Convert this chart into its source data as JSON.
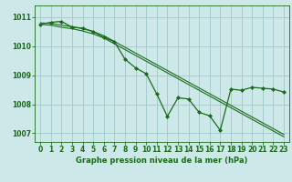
{
  "title": "Graphe pression niveau de la mer (hPa)",
  "bg_color": "#cce8e8",
  "grid_color": "#a0c8c8",
  "line_color": "#1a6b1a",
  "marker_color": "#1a6b1a",
  "xlim": [
    -0.5,
    23.5
  ],
  "ylim": [
    1006.7,
    1011.4
  ],
  "yticks": [
    1007,
    1008,
    1009,
    1010,
    1011
  ],
  "xticks": [
    0,
    1,
    2,
    3,
    4,
    5,
    6,
    7,
    8,
    9,
    10,
    11,
    12,
    13,
    14,
    15,
    16,
    17,
    18,
    19,
    20,
    21,
    22,
    23
  ],
  "series1_x": [
    0,
    1,
    2,
    3,
    4,
    5,
    6,
    7,
    8,
    9,
    10,
    11,
    12,
    13,
    14,
    15,
    16,
    17,
    18,
    19,
    20,
    21,
    22,
    23
  ],
  "series1_y": [
    1010.75,
    1010.82,
    1010.85,
    1010.65,
    1010.62,
    1010.5,
    1010.3,
    1010.15,
    1009.55,
    1009.25,
    1009.05,
    1008.35,
    1007.58,
    1008.22,
    1008.18,
    1007.72,
    1007.6,
    1007.1,
    1008.52,
    1008.48,
    1008.58,
    1008.55,
    1008.52,
    1008.42
  ],
  "series2_x": [
    0,
    1,
    2,
    3,
    4,
    5,
    6,
    7,
    8,
    9,
    10,
    11,
    12,
    13,
    14,
    15,
    16,
    17,
    18,
    19,
    20,
    21,
    22,
    23
  ],
  "series2_y": [
    1010.75,
    1010.72,
    1010.65,
    1010.6,
    1010.52,
    1010.42,
    1010.28,
    1010.08,
    1009.88,
    1009.68,
    1009.48,
    1009.28,
    1009.08,
    1008.88,
    1008.68,
    1008.48,
    1008.28,
    1008.08,
    1007.88,
    1007.68,
    1007.48,
    1007.28,
    1007.08,
    1006.88
  ],
  "series3_x": [
    0,
    1,
    2,
    3,
    4,
    5,
    6,
    7,
    8,
    9,
    10,
    11,
    12,
    13,
    14,
    15,
    16,
    17,
    18,
    19,
    20,
    21,
    22,
    23
  ],
  "series3_y": [
    1010.8,
    1010.78,
    1010.72,
    1010.67,
    1010.6,
    1010.5,
    1010.36,
    1010.16,
    1009.96,
    1009.76,
    1009.56,
    1009.36,
    1009.16,
    1008.96,
    1008.76,
    1008.56,
    1008.36,
    1008.16,
    1007.96,
    1007.76,
    1007.56,
    1007.36,
    1007.16,
    1006.96
  ],
  "tick_labelsize": 5.5,
  "xlabel_fontsize": 6.0
}
